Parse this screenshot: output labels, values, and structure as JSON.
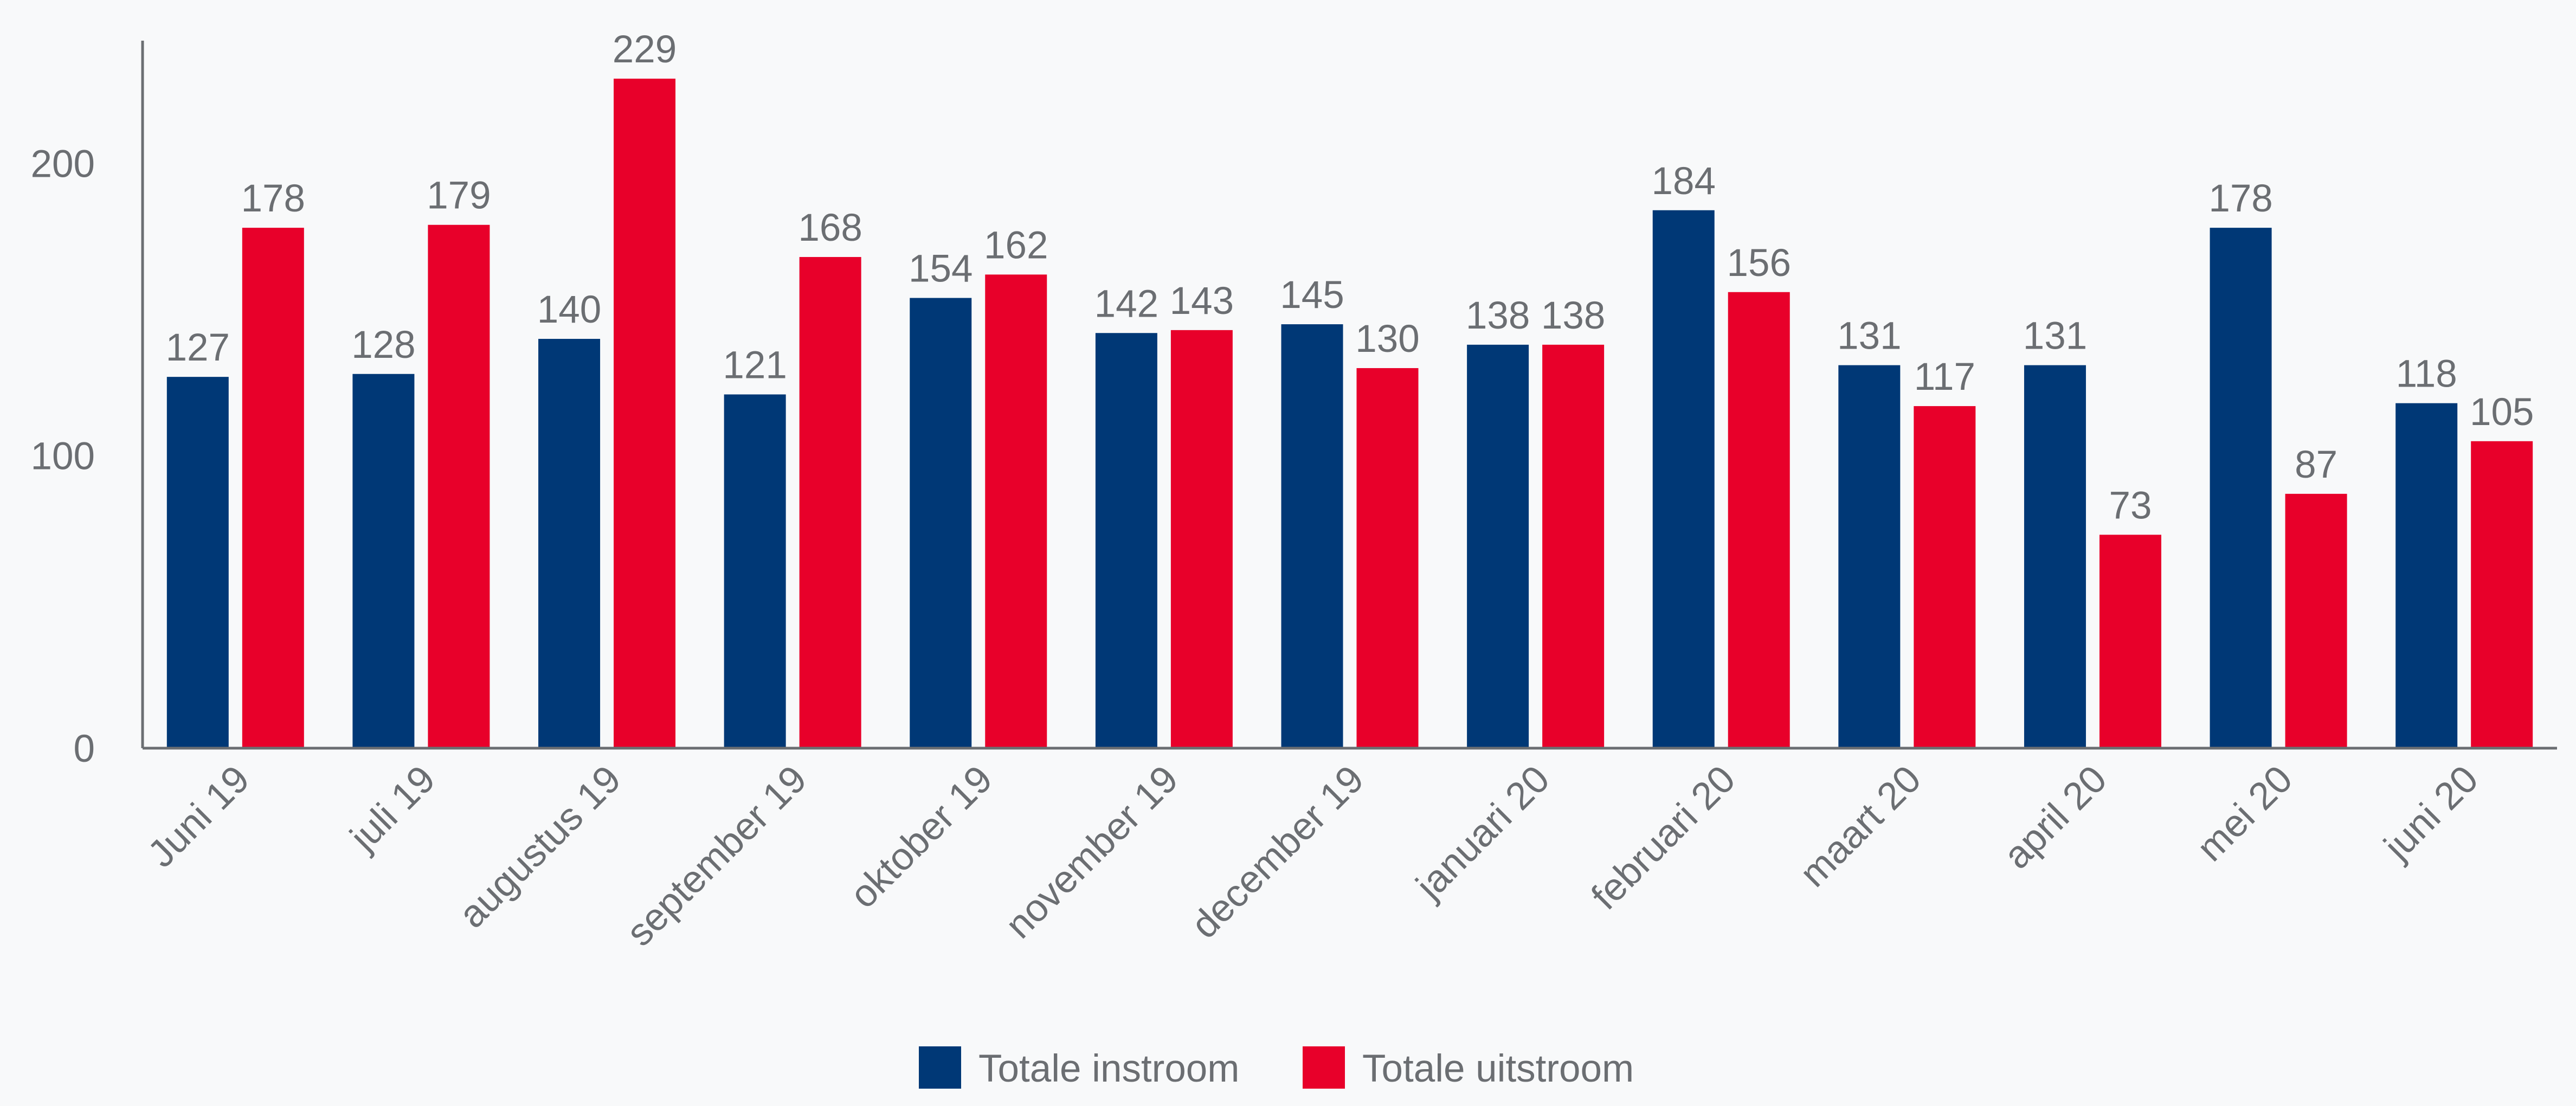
{
  "chart_data": {
    "type": "bar",
    "title": "",
    "xlabel": "",
    "ylabel": "",
    "categories": [
      "Juni 19",
      "juli 19",
      "augustus 19",
      "september 19",
      "oktober 19",
      "november 19",
      "december 19",
      "januari 20",
      "februari 20",
      "maart 20",
      "april 20",
      "mei 20",
      "juni 20"
    ],
    "series": [
      {
        "name": "Totale instroom",
        "color": "#003876",
        "values": [
          127,
          128,
          140,
          121,
          154,
          142,
          145,
          138,
          184,
          131,
          131,
          178,
          118
        ]
      },
      {
        "name": "Totale uitstroom",
        "color": "#e8002a",
        "values": [
          178,
          179,
          229,
          168,
          162,
          143,
          130,
          138,
          156,
          117,
          73,
          87,
          105
        ]
      }
    ],
    "ylim": [
      0,
      242
    ],
    "yticks": [
      0,
      100,
      200
    ],
    "ytick_labels": [
      "0",
      "100",
      "200"
    ],
    "grid": false,
    "legend": "bottom-center",
    "data_labels": true
  }
}
